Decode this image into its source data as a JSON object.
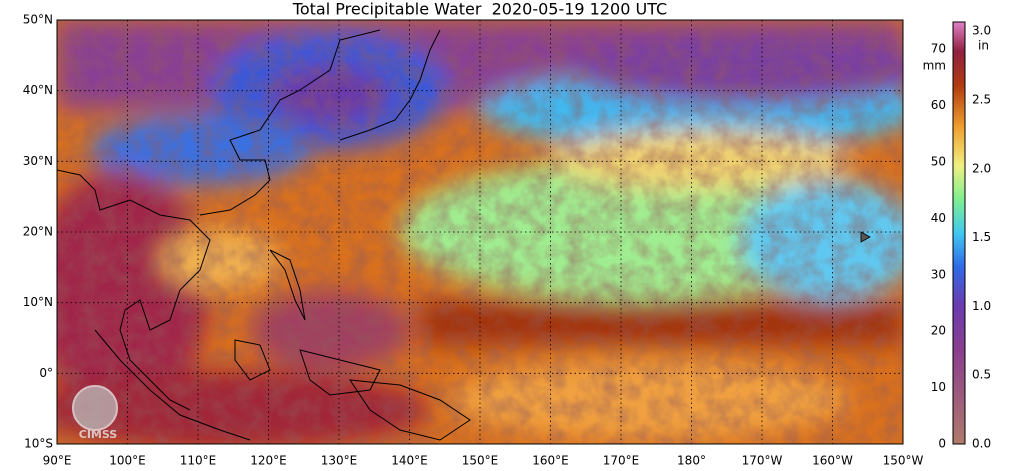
{
  "title": "Total Precipitable Water  2020-05-19 1200 UTC",
  "latitude_labels": [
    "50°N",
    "40°N",
    "30°N",
    "20°N",
    "10°N",
    "0°",
    "10°S"
  ],
  "longitude_labels": [
    "90°E",
    "100°E",
    "110°E",
    "120°E",
    "130°E",
    "140°E",
    "150°E",
    "160°E",
    "170°E",
    "180°",
    "170°W",
    "160°W",
    "150°W"
  ],
  "colorbar": {
    "mm_unit": "mm",
    "in_unit": "in",
    "mm_labels": [
      "0",
      "10",
      "20",
      "30",
      "40",
      "50",
      "60",
      "70"
    ],
    "in_labels": [
      "0.0",
      "0.5",
      "1.0",
      "1.5",
      "2.0",
      "2.5",
      "3.0"
    ]
  },
  "logo": "CIMSS"
}
